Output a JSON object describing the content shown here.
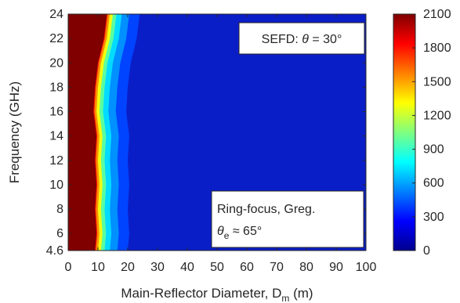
{
  "chart_data": {
    "type": "heatmap",
    "title": "",
    "xlabel": "Main-Reflector Diameter, D",
    "xlabel_sub": "m",
    "xlabel_tail": " (m)",
    "ylabel": "Frequency (GHz)",
    "xlim": [
      0,
      100
    ],
    "ylim": [
      4.6,
      24
    ],
    "x_ticks": [
      0,
      10,
      20,
      30,
      40,
      50,
      60,
      70,
      80,
      90,
      100
    ],
    "y_ticks": [
      4.6,
      6,
      8,
      10,
      12,
      14,
      16,
      18,
      20,
      22,
      24
    ],
    "colorbar_ticks": [
      0,
      300,
      600,
      900,
      1200,
      1500,
      1800,
      2100
    ],
    "clim": [
      0,
      2100
    ],
    "colormap": "jet",
    "annotations": {
      "top_right": {
        "prefix": "SEFD: ",
        "symbol": "θ",
        "suffix": " = 30°"
      },
      "bottom_right": {
        "line1": "Ring-focus, Greg.",
        "symbol": "θ",
        "sub": "e",
        "suffix": " ≈ 65°"
      }
    },
    "saturation_edge": {
      "frequency_ghz": [
        4.6,
        6,
        8,
        10,
        12,
        14,
        16,
        18,
        20,
        22,
        24
      ],
      "diameter_m": [
        9,
        9.5,
        9,
        9.5,
        9,
        9.5,
        8.5,
        9,
        10,
        12,
        13
      ]
    },
    "background_sefd": 60
  }
}
